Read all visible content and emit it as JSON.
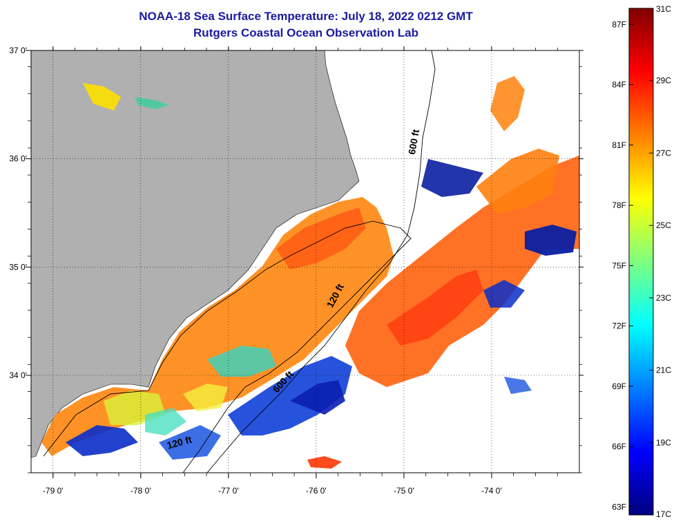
{
  "title": {
    "line1": "NOAA-18 Sea Surface Temperature:  July 18, 2022 0212 GMT",
    "line2": "Rutgers Coastal Ocean Observation Lab"
  },
  "map": {
    "lon_range": [
      -79.25,
      -73.0
    ],
    "lat_range": [
      33.1,
      37.0
    ],
    "lon_ticks": [
      {
        "value": -79,
        "label": "-79 0'"
      },
      {
        "value": -78,
        "label": "-78 0'"
      },
      {
        "value": -77,
        "label": "-77 0'"
      },
      {
        "value": -76,
        "label": "-76 0'"
      },
      {
        "value": -75,
        "label": "-75 0'"
      },
      {
        "value": -74,
        "label": "-74 0'"
      }
    ],
    "lat_ticks": [
      {
        "value": 37,
        "label": "37 0'"
      },
      {
        "value": 36,
        "label": "36 0'"
      },
      {
        "value": 35,
        "label": "35 0'"
      },
      {
        "value": 34,
        "label": "34 0'"
      }
    ],
    "land_color": "#b0b0b0",
    "contours": [
      {
        "label": "600 ft",
        "lon": -74.85,
        "lat": 36.15,
        "angle": -80
      },
      {
        "label": "120 ft",
        "lon": -75.75,
        "lat": 34.72,
        "angle": -62
      },
      {
        "label": "600 ft",
        "lon": -76.35,
        "lat": 33.92,
        "angle": -48
      },
      {
        "label": "120 ft",
        "lon": -77.55,
        "lat": 33.35,
        "angle": -15
      }
    ]
  },
  "colorbar": {
    "min_c": 17,
    "max_c": 31,
    "colors": [
      "#00007f",
      "#0000ff",
      "#007fff",
      "#00ffff",
      "#7fff7f",
      "#ffff00",
      "#ff7f00",
      "#ff0000",
      "#7f0000"
    ],
    "celsius_ticks": [
      {
        "value": 31,
        "label": "31C"
      },
      {
        "value": 29,
        "label": "29C"
      },
      {
        "value": 27,
        "label": "27C"
      },
      {
        "value": 25,
        "label": "25C"
      },
      {
        "value": 23,
        "label": "23C"
      },
      {
        "value": 21,
        "label": "21C"
      },
      {
        "value": 19,
        "label": "19C"
      },
      {
        "value": 17,
        "label": "17C"
      }
    ],
    "fahrenheit_ticks": [
      {
        "value": 87,
        "label": "87F"
      },
      {
        "value": 84,
        "label": "84F"
      },
      {
        "value": 81,
        "label": "81F"
      },
      {
        "value": 78,
        "label": "78F"
      },
      {
        "value": 75,
        "label": "75F"
      },
      {
        "value": 72,
        "label": "72F"
      },
      {
        "value": 69,
        "label": "69F"
      },
      {
        "value": 66,
        "label": "66F"
      },
      {
        "value": 63,
        "label": "63F"
      }
    ]
  }
}
